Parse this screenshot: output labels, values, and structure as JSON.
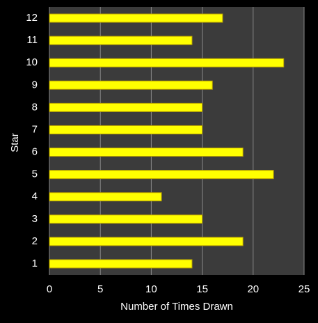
{
  "chart_data": {
    "type": "bar",
    "orientation": "horizontal",
    "xlabel": "Number of Times Drawn",
    "ylabel": "Star",
    "categories": [
      "1",
      "2",
      "3",
      "4",
      "5",
      "6",
      "7",
      "8",
      "9",
      "10",
      "11",
      "12"
    ],
    "values": [
      14,
      19,
      15,
      11,
      22,
      19,
      15,
      15,
      16,
      23,
      14,
      17
    ],
    "color": "#ffff00",
    "xlim": [
      0,
      25
    ],
    "xticks": [
      0,
      5,
      10,
      15,
      20,
      25
    ],
    "grid": true
  }
}
